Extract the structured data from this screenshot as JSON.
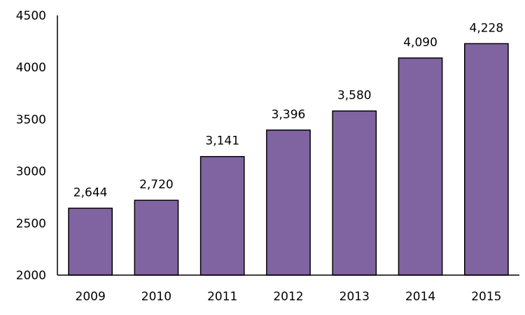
{
  "chart_data": {
    "type": "bar",
    "categories": [
      "2009",
      "2010",
      "2011",
      "2012",
      "2013",
      "2014",
      "2015"
    ],
    "values": [
      2644,
      2720,
      3141,
      3396,
      3580,
      4090,
      4228
    ],
    "data_labels": [
      "2,644",
      "2,720",
      "3,141",
      "3,396",
      "3,580",
      "4,090",
      "4,228"
    ],
    "ylim": [
      2000,
      4500
    ],
    "yticks": [
      "2000",
      "2500",
      "3000",
      "3500",
      "4000",
      "4500"
    ],
    "grid": false,
    "bar_color": "#8064A2",
    "title": "",
    "xlabel": "",
    "ylabel": ""
  }
}
